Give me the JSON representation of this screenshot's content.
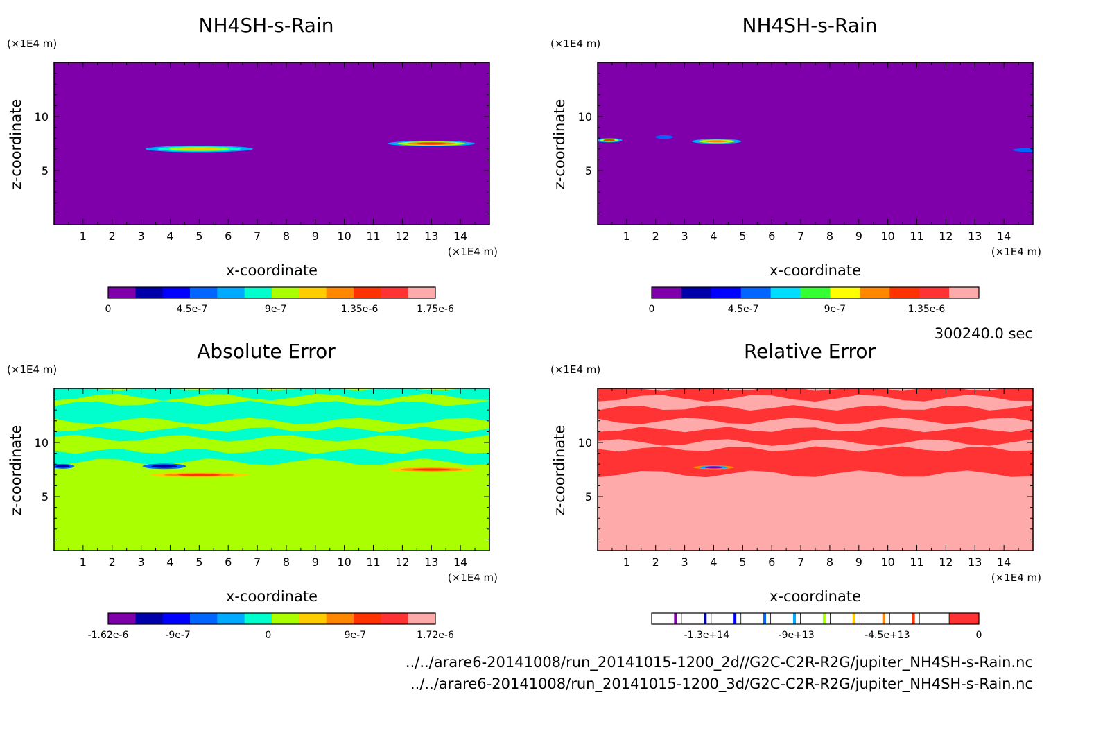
{
  "time_label": "300240.0 sec",
  "file_paths": [
    "../../arare6-20141008/run_20141015-1200_2d//G2C-C2R-R2G/jupiter_NH4SH-s-Rain.nc",
    "../../arare6-20141008/run_20141015-1200_3d/G2C-C2R-R2G/jupiter_NH4SH-s-Rain.nc"
  ],
  "chart_data": [
    {
      "type": "heatmap",
      "title": "NH4SH-s-Rain",
      "xlabel": "x-coordinate",
      "ylabel": "z-coordinate",
      "x_unit": "(×1E4 m)",
      "y_unit": "(×1E4 m)",
      "xlim": [
        0,
        15
      ],
      "ylim": [
        0,
        15
      ],
      "x_ticks": [
        "1",
        "2",
        "3",
        "4",
        "5",
        "6",
        "7",
        "8",
        "9",
        "10",
        "11",
        "12",
        "13",
        "14"
      ],
      "y_ticks": [
        "5",
        "10"
      ],
      "background_color": "#7f00aa",
      "colorbar": {
        "colors": [
          "#7f00aa",
          "#0000aa",
          "#0000ff",
          "#0066ff",
          "#00aaff",
          "#00ffcc",
          "#aaff00",
          "#ffcc00",
          "#ff8800",
          "#ff3300",
          "#ff3333",
          "#ffaaaa"
        ],
        "labels": [
          {
            "value": "0",
            "pos": 0
          },
          {
            "value": "4.5e-7",
            "pos": 0.256
          },
          {
            "value": "9e-7",
            "pos": 0.512
          },
          {
            "value": "1.35e-6",
            "pos": 0.768
          },
          {
            "value": "1.75e-6",
            "pos": 1
          }
        ]
      },
      "features": [
        {
          "x": 5.0,
          "z": 7.0,
          "width": 3.7,
          "height": 0.6,
          "colors": [
            "#00aaff",
            "#00ffcc",
            "#aaff00",
            "#ffcc00"
          ]
        },
        {
          "x": 13.0,
          "z": 7.5,
          "width": 3.0,
          "height": 0.5,
          "colors": [
            "#00aaff",
            "#aaff00",
            "#ff8800",
            "#ff3300"
          ]
        }
      ]
    },
    {
      "type": "heatmap",
      "title": "NH4SH-s-Rain",
      "xlabel": "x-coordinate",
      "ylabel": "z-coordinate",
      "x_unit": "(×1E4 m)",
      "y_unit": "(×1E4 m)",
      "xlim": [
        0,
        15
      ],
      "ylim": [
        0,
        15
      ],
      "x_ticks": [
        "1",
        "2",
        "3",
        "4",
        "5",
        "6",
        "7",
        "8",
        "9",
        "10",
        "11",
        "12",
        "13",
        "14"
      ],
      "y_ticks": [
        "5",
        "10"
      ],
      "background_color": "#7f00aa",
      "colorbar": {
        "colors": [
          "#7f00aa",
          "#0000aa",
          "#0000ff",
          "#0066ff",
          "#00ddff",
          "#33ff33",
          "#ffff00",
          "#ff8800",
          "#ff3300",
          "#ff3333",
          "#ffaaaa"
        ],
        "labels": [
          {
            "value": "0",
            "pos": 0
          },
          {
            "value": "4.5e-7",
            "pos": 0.28
          },
          {
            "value": "9e-7",
            "pos": 0.56
          },
          {
            "value": "1.35e-6",
            "pos": 0.84
          }
        ]
      },
      "features": [
        {
          "x": 0.4,
          "z": 7.8,
          "width": 0.9,
          "height": 0.4,
          "colors": [
            "#00aaff",
            "#aaff00",
            "#ff3300"
          ]
        },
        {
          "x": 2.3,
          "z": 8.1,
          "width": 0.6,
          "height": 0.35,
          "colors": [
            "#0066ff"
          ]
        },
        {
          "x": 4.1,
          "z": 7.7,
          "width": 1.7,
          "height": 0.45,
          "colors": [
            "#00aaff",
            "#aaff00",
            "#ff8800"
          ]
        },
        {
          "x": 14.8,
          "z": 6.9,
          "width": 1.0,
          "height": 0.35,
          "colors": [
            "#0066ff"
          ]
        }
      ]
    },
    {
      "type": "heatmap",
      "title": "Absolute Error",
      "xlabel": "x-coordinate",
      "ylabel": "z-coordinate",
      "x_unit": "(×1E4 m)",
      "y_unit": "(×1E4 m)",
      "xlim": [
        0,
        15
      ],
      "ylim": [
        0,
        15
      ],
      "x_ticks": [
        "1",
        "2",
        "3",
        "4",
        "5",
        "6",
        "7",
        "8",
        "9",
        "10",
        "11",
        "12",
        "13",
        "14"
      ],
      "y_ticks": [
        "5",
        "10"
      ],
      "background_color": "#aaff00",
      "bands": [
        {
          "z0": 8.2,
          "z1": 9.2,
          "color": "#00ffcc"
        },
        {
          "z0": 10.4,
          "z1": 11.2,
          "color": "#00ffcc"
        },
        {
          "z0": 12.0,
          "z1": 13.6,
          "color": "#00ffcc"
        },
        {
          "z0": 14.2,
          "z1": 15.0,
          "color": "#00ffcc"
        }
      ],
      "colorbar": {
        "colors": [
          "#7f00aa",
          "#0000aa",
          "#0000ff",
          "#0066ff",
          "#00aaff",
          "#00ffcc",
          "#aaff00",
          "#ffcc00",
          "#ff8800",
          "#ff3300",
          "#ff3333",
          "#ffaaaa"
        ],
        "labels": [
          {
            "value": "-1.62e-6",
            "pos": 0
          },
          {
            "value": "-9e-7",
            "pos": 0.213
          },
          {
            "value": "0",
            "pos": 0.489
          },
          {
            "value": "9e-7",
            "pos": 0.755
          },
          {
            "value": "1.72e-6",
            "pos": 1
          }
        ]
      },
      "features": [
        {
          "x": 0.3,
          "z": 7.8,
          "width": 0.8,
          "height": 0.45,
          "colors": [
            "#0066ff",
            "#0000aa"
          ]
        },
        {
          "x": 3.8,
          "z": 7.8,
          "width": 1.5,
          "height": 0.5,
          "colors": [
            "#0066ff",
            "#0000aa"
          ]
        },
        {
          "x": 5.0,
          "z": 7.0,
          "width": 3.4,
          "height": 0.45,
          "colors": [
            "#ffcc00",
            "#ff8800",
            "#ff3300"
          ]
        },
        {
          "x": 13.0,
          "z": 7.5,
          "width": 3.0,
          "height": 0.45,
          "colors": [
            "#ffcc00",
            "#ff8800",
            "#ff3300"
          ]
        }
      ]
    },
    {
      "type": "heatmap",
      "title": "Relative Error",
      "xlabel": "x-coordinate",
      "ylabel": "z-coordinate",
      "x_unit": "(×1E4 m)",
      "y_unit": "(×1E4 m)",
      "xlim": [
        0,
        15
      ],
      "ylim": [
        0,
        15
      ],
      "x_ticks": [
        "1",
        "2",
        "3",
        "4",
        "5",
        "6",
        "7",
        "8",
        "9",
        "10",
        "11",
        "12",
        "13",
        "14"
      ],
      "y_ticks": [
        "5",
        "10"
      ],
      "background_color": "#ffaaaa",
      "bands": [
        {
          "z0": 7.1,
          "z1": 9.4,
          "color": "#ff3333"
        },
        {
          "z0": 10.0,
          "z1": 11.2,
          "color": "#ff3333"
        },
        {
          "z0": 12.0,
          "z1": 13.2,
          "color": "#ff3333"
        },
        {
          "z0": 14.1,
          "z1": 15.0,
          "color": "#ff3333"
        }
      ],
      "colorbar": {
        "colors": [
          "#ffffff",
          "#ffffff",
          "#ffffff",
          "#ffffff",
          "#ffffff",
          "#ffffff",
          "#ffffff",
          "#ffffff",
          "#ffffff",
          "#ffffff",
          "#ff3333"
        ],
        "separators": [
          "#7f00aa",
          "#0000aa",
          "#0000ff",
          "#0066ff",
          "#00aaff",
          "#aaff00",
          "#ffcc00",
          "#ff8800",
          "#ff3300",
          "#ffffff"
        ],
        "labels": [
          {
            "value": "-1.3e+14",
            "pos": 0.168
          },
          {
            "value": "-9e+13",
            "pos": 0.442
          },
          {
            "value": "-4.5e+13",
            "pos": 0.72
          },
          {
            "value": "0",
            "pos": 1
          }
        ]
      },
      "features": [
        {
          "x": 4.0,
          "z": 7.7,
          "width": 1.4,
          "height": 0.35,
          "colors": [
            "#ff8800",
            "#00aaff",
            "#7f00aa"
          ]
        }
      ]
    }
  ]
}
